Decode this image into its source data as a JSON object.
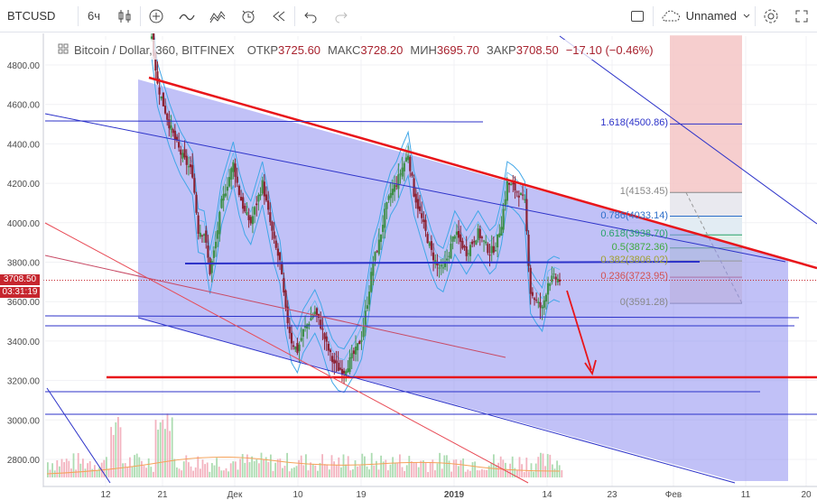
{
  "toolbar": {
    "symbol": "BTCUSD",
    "interval": "6ч",
    "layout_name": "Unnamed"
  },
  "legend": {
    "title": "Bitcoin / Dollar, 360, BITFINEX",
    "open_label": "ОТКР",
    "open_value": "3725.60",
    "high_label": "МАКС",
    "high_value": "3728.20",
    "low_label": "МИН",
    "low_value": "3695.70",
    "close_label": "ЗАКР",
    "close_value": "3708.50",
    "change": "−17.10 (−0.46%)"
  },
  "price_tags": {
    "last_price": "3708.50",
    "countdown": "03:31:19"
  },
  "colors": {
    "up_candle": "#3f8f49",
    "down_candle": "#8c2233",
    "channel_fill": "#8e8ef0",
    "trendline_red": "#e8151a",
    "trendline_blue": "#2c32c9",
    "price_line": "#c6262e",
    "bollinger": "#41a7e8"
  },
  "fib_levels": [
    {
      "label": "1.618(4500.86)",
      "value": 4500.86
    },
    {
      "label": "1(4153.45)",
      "value": 4153.45
    },
    {
      "label": "0.786(4033.14)",
      "value": 4033.14
    },
    {
      "label": "0.618(3938.70)",
      "value": 3938.7
    },
    {
      "label": "0.5(3872.36)",
      "value": 3872.36
    },
    {
      "label": "0.382(3806.02)",
      "value": 3806.02
    },
    {
      "label": "0.236(3723.95)",
      "value": 3723.95
    },
    {
      "label": "0(3591.28)",
      "value": 3591.28
    }
  ],
  "chart_data": {
    "type": "candlestick",
    "title": "Bitcoin / Dollar, 360, BITFINEX",
    "ylim": [
      2700,
      5000
    ],
    "y_ticks": [
      "4800.00",
      "4600.00",
      "4400.00",
      "4200.00",
      "4000.00",
      "3800.00",
      "3600.00",
      "3400.00",
      "3200.00",
      "3000.00",
      "2800.00"
    ],
    "x_ticks": [
      "12",
      "21",
      "Дек",
      "10",
      "19",
      "2019",
      "14",
      "23",
      "Фев",
      "11",
      "20"
    ],
    "series": [
      {
        "name": "BTCUSD",
        "close_path": [
          4950,
          4700,
          4600,
          4500,
          4420,
          4350,
          4300,
          4250,
          3960,
          3950,
          3750,
          3900,
          4100,
          4200,
          4300,
          4150,
          4050,
          4000,
          4100,
          4200,
          4050,
          3900,
          3800,
          3550,
          3400,
          3350,
          3450,
          3500,
          3550,
          3480,
          3380,
          3300,
          3260,
          3250,
          3300,
          3350,
          3420,
          3600,
          3800,
          3900,
          4050,
          4150,
          4200,
          4280,
          4350,
          4150,
          4050,
          3950,
          3850,
          3780,
          3760,
          3850,
          3950,
          3900,
          3850,
          3900,
          3950,
          3900,
          3850,
          3880,
          4000,
          4200,
          4180,
          4150,
          4100,
          3650,
          3600,
          3560,
          3700,
          3720,
          3708.5
        ]
      }
    ]
  }
}
